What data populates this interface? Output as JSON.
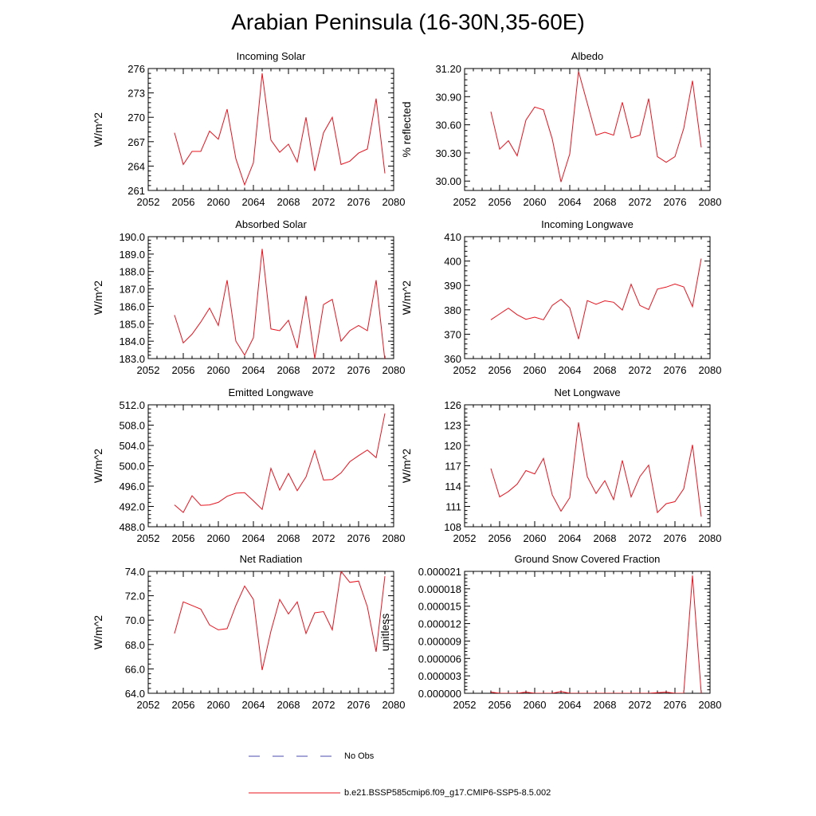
{
  "figure": {
    "title": "Arabian Peninsula (16-30N,35-60E)",
    "line_color": "#e8131e",
    "obs_color": "#4b4bb0",
    "legend": {
      "obs_label": "No Obs",
      "model_label": "b.e21.BSSP585cmip6.f09_g17.CMIP6-SSP5-8.5.002"
    }
  },
  "chart_data": [
    {
      "type": "line",
      "title": "Incoming Solar",
      "ylabel": "W/m^2",
      "xlim": [
        2052,
        2080
      ],
      "ylim": [
        261,
        276
      ],
      "xticks": [
        2052,
        2056,
        2060,
        2064,
        2068,
        2072,
        2076,
        2080
      ],
      "yticks": [
        "261",
        "264",
        "267",
        "270",
        "273",
        "276"
      ],
      "x": [
        2055,
        2056,
        2057,
        2058,
        2059,
        2060,
        2061,
        2062,
        2063,
        2064,
        2065,
        2066,
        2067,
        2068,
        2069,
        2070,
        2071,
        2072,
        2073,
        2074,
        2075,
        2076,
        2077,
        2078,
        2079
      ],
      "y": [
        268.1,
        264.2,
        265.8,
        265.8,
        268.3,
        267.3,
        271.0,
        264.9,
        261.7,
        264.4,
        275.4,
        267.2,
        265.7,
        266.7,
        264.5,
        270.0,
        263.4,
        268.1,
        270.0,
        264.2,
        264.6,
        265.6,
        266.1,
        272.3,
        263.1
      ]
    },
    {
      "type": "line",
      "title": "Albedo",
      "ylabel": "% reflected",
      "xlim": [
        2052,
        2080
      ],
      "ylim": [
        29.9,
        31.2
      ],
      "xticks": [
        2052,
        2056,
        2060,
        2064,
        2068,
        2072,
        2076,
        2080
      ],
      "yticks": [
        "30.00",
        "30.30",
        "30.60",
        "30.90",
        "31.20"
      ],
      "x": [
        2055,
        2056,
        2057,
        2058,
        2059,
        2060,
        2061,
        2062,
        2063,
        2064,
        2065,
        2066,
        2067,
        2068,
        2069,
        2070,
        2071,
        2072,
        2073,
        2074,
        2075,
        2076,
        2077,
        2078,
        2079
      ],
      "y": [
        30.74,
        30.34,
        30.43,
        30.27,
        30.65,
        30.79,
        30.76,
        30.45,
        29.99,
        30.29,
        31.17,
        30.83,
        30.49,
        30.52,
        30.49,
        30.84,
        30.46,
        30.49,
        30.88,
        30.26,
        30.2,
        30.26,
        30.56,
        31.07,
        30.36
      ]
    },
    {
      "type": "line",
      "title": "Absorbed Solar",
      "ylabel": "W/m^2",
      "xlim": [
        2052,
        2080
      ],
      "ylim": [
        183,
        190
      ],
      "xticks": [
        2052,
        2056,
        2060,
        2064,
        2068,
        2072,
        2076,
        2080
      ],
      "yticks": [
        "183.0",
        "184.0",
        "185.0",
        "186.0",
        "187.0",
        "188.0",
        "189.0",
        "190.0"
      ],
      "x": [
        2055,
        2056,
        2057,
        2058,
        2059,
        2060,
        2061,
        2062,
        2063,
        2064,
        2065,
        2066,
        2067,
        2068,
        2069,
        2070,
        2071,
        2072,
        2073,
        2074,
        2075,
        2076,
        2077,
        2078,
        2079
      ],
      "y": [
        185.5,
        183.9,
        184.4,
        185.1,
        185.9,
        184.9,
        187.5,
        184.0,
        183.2,
        184.2,
        189.3,
        184.7,
        184.6,
        185.2,
        183.6,
        186.6,
        183.0,
        186.1,
        186.4,
        184.0,
        184.6,
        184.9,
        184.6,
        187.5,
        182.9
      ]
    },
    {
      "type": "line",
      "title": "Incoming Longwave",
      "ylabel": "W/m^2",
      "xlim": [
        2052,
        2080
      ],
      "ylim": [
        360,
        410
      ],
      "xticks": [
        2052,
        2056,
        2060,
        2064,
        2068,
        2072,
        2076,
        2080
      ],
      "yticks": [
        "360",
        "370",
        "380",
        "390",
        "400",
        "410"
      ],
      "x": [
        2055,
        2056,
        2057,
        2058,
        2059,
        2060,
        2061,
        2062,
        2063,
        2064,
        2065,
        2066,
        2067,
        2068,
        2069,
        2070,
        2071,
        2072,
        2073,
        2074,
        2075,
        2076,
        2077,
        2078,
        2079
      ],
      "y": [
        375.9,
        378.3,
        380.7,
        378.0,
        376.1,
        377.0,
        375.9,
        381.8,
        384.3,
        380.8,
        368.0,
        383.8,
        382.3,
        383.7,
        383.1,
        379.9,
        390.5,
        381.8,
        380.1,
        388.5,
        389.3,
        390.6,
        389.4,
        381.3,
        401.0
      ]
    },
    {
      "type": "line",
      "title": "Emitted Longwave",
      "ylabel": "W/m^2",
      "xlim": [
        2052,
        2080
      ],
      "ylim": [
        488,
        512
      ],
      "xticks": [
        2052,
        2056,
        2060,
        2064,
        2068,
        2072,
        2076,
        2080
      ],
      "yticks": [
        "488.0",
        "492.0",
        "496.0",
        "500.0",
        "504.0",
        "508.0",
        "512.0"
      ],
      "x": [
        2055,
        2056,
        2057,
        2058,
        2059,
        2060,
        2061,
        2062,
        2063,
        2064,
        2065,
        2066,
        2067,
        2068,
        2069,
        2070,
        2071,
        2072,
        2073,
        2074,
        2075,
        2076,
        2077,
        2078,
        2079
      ],
      "y": [
        492.3,
        490.8,
        494.1,
        492.2,
        492.3,
        492.8,
        494.0,
        494.6,
        494.7,
        493.1,
        491.4,
        499.5,
        495.2,
        498.5,
        495.1,
        497.8,
        503.0,
        497.2,
        497.3,
        498.6,
        500.8,
        502.0,
        503.1,
        501.6,
        510.3
      ]
    },
    {
      "type": "line",
      "title": "Net Longwave",
      "ylabel": "W/m^2",
      "xlim": [
        2052,
        2080
      ],
      "ylim": [
        108,
        126
      ],
      "xticks": [
        2052,
        2056,
        2060,
        2064,
        2068,
        2072,
        2076,
        2080
      ],
      "yticks": [
        "108",
        "111",
        "114",
        "117",
        "120",
        "123",
        "126"
      ],
      "x": [
        2055,
        2056,
        2057,
        2058,
        2059,
        2060,
        2061,
        2062,
        2063,
        2064,
        2065,
        2066,
        2067,
        2068,
        2069,
        2070,
        2071,
        2072,
        2073,
        2074,
        2075,
        2076,
        2077,
        2078,
        2079
      ],
      "y": [
        116.6,
        112.4,
        113.2,
        114.3,
        116.3,
        115.8,
        118.1,
        112.7,
        110.3,
        112.3,
        123.4,
        115.4,
        112.9,
        114.8,
        112.0,
        117.8,
        112.4,
        115.4,
        117.1,
        110.1,
        111.4,
        111.7,
        113.6,
        120.1,
        109.5
      ]
    },
    {
      "type": "line",
      "title": "Net Radiation",
      "ylabel": "W/m^2",
      "xlim": [
        2052,
        2080
      ],
      "ylim": [
        64,
        74
      ],
      "xticks": [
        2052,
        2056,
        2060,
        2064,
        2068,
        2072,
        2076,
        2080
      ],
      "yticks": [
        "64.0",
        "66.0",
        "68.0",
        "70.0",
        "72.0",
        "74.0"
      ],
      "x": [
        2055,
        2056,
        2057,
        2058,
        2059,
        2060,
        2061,
        2062,
        2063,
        2064,
        2065,
        2066,
        2067,
        2068,
        2069,
        2070,
        2071,
        2072,
        2073,
        2074,
        2075,
        2076,
        2077,
        2078,
        2079
      ],
      "y": [
        68.9,
        71.5,
        71.2,
        70.9,
        69.6,
        69.2,
        69.3,
        71.2,
        72.8,
        71.7,
        65.9,
        69.1,
        71.7,
        70.5,
        71.5,
        68.9,
        70.6,
        70.7,
        69.2,
        74.0,
        73.1,
        73.2,
        71.1,
        67.4,
        73.6
      ]
    },
    {
      "type": "line",
      "title": "Ground Snow Covered Fraction",
      "ylabel": "unitless",
      "xlim": [
        2052,
        2080
      ],
      "ylim": [
        0,
        2.1e-05
      ],
      "xticks": [
        2052,
        2056,
        2060,
        2064,
        2068,
        2072,
        2076,
        2080
      ],
      "yticks": [
        "0.000000",
        "0.000003",
        "0.000006",
        "0.000009",
        "0.000012",
        "0.000015",
        "0.000018",
        "0.000021"
      ],
      "x": [
        2055,
        2056,
        2057,
        2058,
        2059,
        2060,
        2061,
        2062,
        2063,
        2064,
        2065,
        2066,
        2067,
        2068,
        2069,
        2070,
        2071,
        2072,
        2073,
        2074,
        2075,
        2076,
        2077,
        2078,
        2079
      ],
      "y": [
        2e-07,
        0.0,
        0.0,
        0.0,
        2e-07,
        0.0,
        0.0,
        0.0,
        3e-07,
        0.0,
        0.0,
        0.0,
        0.0,
        0.0,
        0.0,
        0.0,
        0.0,
        0.0,
        0.0,
        1e-07,
        2e-07,
        0.0,
        0.0,
        2.03e-05,
        0.0
      ]
    }
  ]
}
